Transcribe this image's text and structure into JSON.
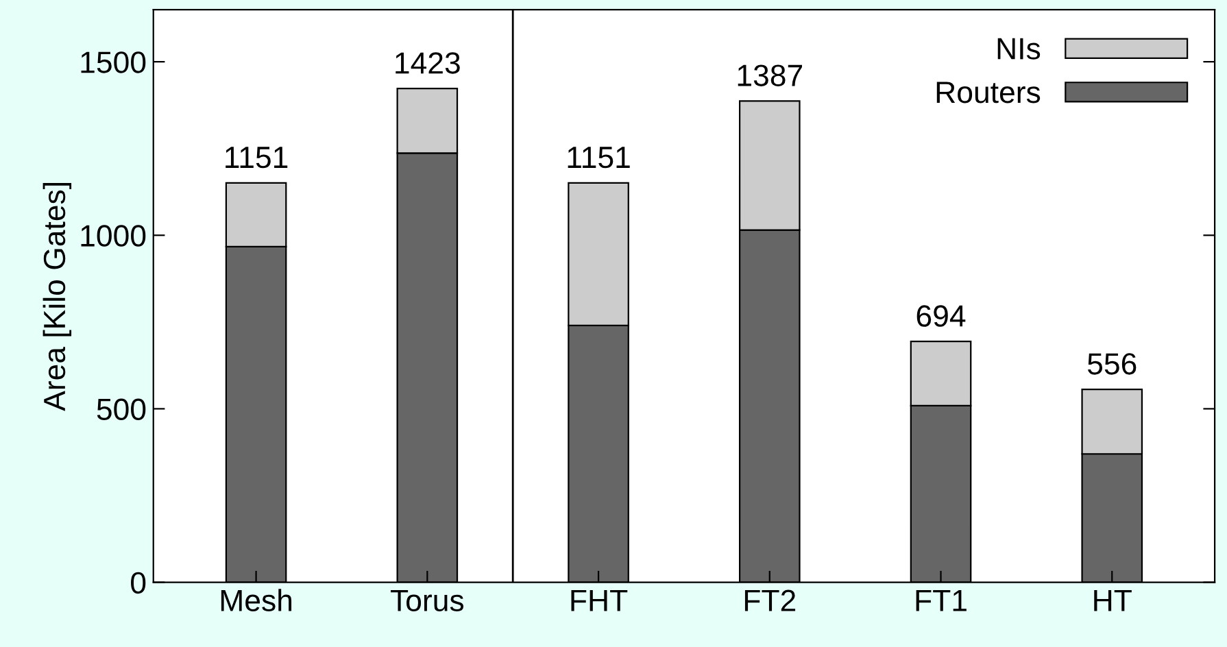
{
  "chart_data": {
    "type": "bar",
    "ylabel": "Area [Kilo Gates]",
    "categories": [
      "Mesh",
      "Torus",
      "FHT",
      "FT2",
      "FT1",
      "HT"
    ],
    "stacked": true,
    "series": [
      {
        "name": "Routers",
        "color": "#666666",
        "values": [
          967,
          1237,
          740,
          1015,
          509,
          370
        ]
      },
      {
        "name": "NIs",
        "color": "#cccccc",
        "values": [
          184,
          186,
          411,
          372,
          185,
          186
        ]
      }
    ],
    "totals": [
      "1151",
      "1423",
      "1151",
      "1387",
      "694",
      "556"
    ],
    "ylim": [
      0,
      1650
    ],
    "yticks": [
      0,
      500,
      1000,
      1500
    ],
    "grid": false,
    "legend": "top right"
  }
}
